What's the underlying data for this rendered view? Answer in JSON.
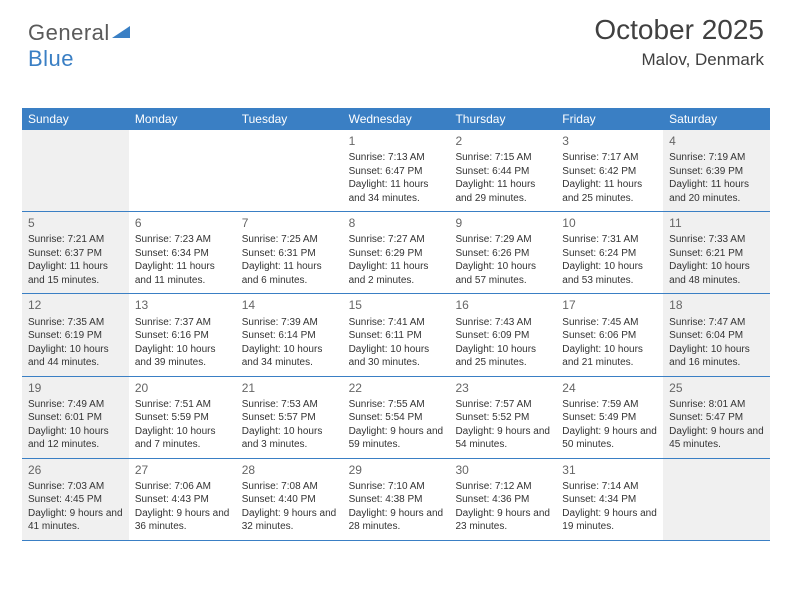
{
  "logo": {
    "part1": "General",
    "part2": "Blue"
  },
  "title": "October 2025",
  "location": "Malov, Denmark",
  "day_headers": [
    "Sunday",
    "Monday",
    "Tuesday",
    "Wednesday",
    "Thursday",
    "Friday",
    "Saturday"
  ],
  "header_bg": "#3a7fc4",
  "header_fg": "#ffffff",
  "weekend_bg": "#f0f0f0",
  "rule_color": "#3a7fc4",
  "weeks": [
    [
      {
        "num": "",
        "lines": []
      },
      {
        "num": "",
        "lines": []
      },
      {
        "num": "",
        "lines": []
      },
      {
        "num": "1",
        "lines": [
          "Sunrise: 7:13 AM",
          "Sunset: 6:47 PM",
          "Daylight: 11 hours and 34 minutes."
        ]
      },
      {
        "num": "2",
        "lines": [
          "Sunrise: 7:15 AM",
          "Sunset: 6:44 PM",
          "Daylight: 11 hours and 29 minutes."
        ]
      },
      {
        "num": "3",
        "lines": [
          "Sunrise: 7:17 AM",
          "Sunset: 6:42 PM",
          "Daylight: 11 hours and 25 minutes."
        ]
      },
      {
        "num": "4",
        "lines": [
          "Sunrise: 7:19 AM",
          "Sunset: 6:39 PM",
          "Daylight: 11 hours and 20 minutes."
        ]
      }
    ],
    [
      {
        "num": "5",
        "lines": [
          "Sunrise: 7:21 AM",
          "Sunset: 6:37 PM",
          "Daylight: 11 hours and 15 minutes."
        ]
      },
      {
        "num": "6",
        "lines": [
          "Sunrise: 7:23 AM",
          "Sunset: 6:34 PM",
          "Daylight: 11 hours and 11 minutes."
        ]
      },
      {
        "num": "7",
        "lines": [
          "Sunrise: 7:25 AM",
          "Sunset: 6:31 PM",
          "Daylight: 11 hours and 6 minutes."
        ]
      },
      {
        "num": "8",
        "lines": [
          "Sunrise: 7:27 AM",
          "Sunset: 6:29 PM",
          "Daylight: 11 hours and 2 minutes."
        ]
      },
      {
        "num": "9",
        "lines": [
          "Sunrise: 7:29 AM",
          "Sunset: 6:26 PM",
          "Daylight: 10 hours and 57 minutes."
        ]
      },
      {
        "num": "10",
        "lines": [
          "Sunrise: 7:31 AM",
          "Sunset: 6:24 PM",
          "Daylight: 10 hours and 53 minutes."
        ]
      },
      {
        "num": "11",
        "lines": [
          "Sunrise: 7:33 AM",
          "Sunset: 6:21 PM",
          "Daylight: 10 hours and 48 minutes."
        ]
      }
    ],
    [
      {
        "num": "12",
        "lines": [
          "Sunrise: 7:35 AM",
          "Sunset: 6:19 PM",
          "Daylight: 10 hours and 44 minutes."
        ]
      },
      {
        "num": "13",
        "lines": [
          "Sunrise: 7:37 AM",
          "Sunset: 6:16 PM",
          "Daylight: 10 hours and 39 minutes."
        ]
      },
      {
        "num": "14",
        "lines": [
          "Sunrise: 7:39 AM",
          "Sunset: 6:14 PM",
          "Daylight: 10 hours and 34 minutes."
        ]
      },
      {
        "num": "15",
        "lines": [
          "Sunrise: 7:41 AM",
          "Sunset: 6:11 PM",
          "Daylight: 10 hours and 30 minutes."
        ]
      },
      {
        "num": "16",
        "lines": [
          "Sunrise: 7:43 AM",
          "Sunset: 6:09 PM",
          "Daylight: 10 hours and 25 minutes."
        ]
      },
      {
        "num": "17",
        "lines": [
          "Sunrise: 7:45 AM",
          "Sunset: 6:06 PM",
          "Daylight: 10 hours and 21 minutes."
        ]
      },
      {
        "num": "18",
        "lines": [
          "Sunrise: 7:47 AM",
          "Sunset: 6:04 PM",
          "Daylight: 10 hours and 16 minutes."
        ]
      }
    ],
    [
      {
        "num": "19",
        "lines": [
          "Sunrise: 7:49 AM",
          "Sunset: 6:01 PM",
          "Daylight: 10 hours and 12 minutes."
        ]
      },
      {
        "num": "20",
        "lines": [
          "Sunrise: 7:51 AM",
          "Sunset: 5:59 PM",
          "Daylight: 10 hours and 7 minutes."
        ]
      },
      {
        "num": "21",
        "lines": [
          "Sunrise: 7:53 AM",
          "Sunset: 5:57 PM",
          "Daylight: 10 hours and 3 minutes."
        ]
      },
      {
        "num": "22",
        "lines": [
          "Sunrise: 7:55 AM",
          "Sunset: 5:54 PM",
          "Daylight: 9 hours and 59 minutes."
        ]
      },
      {
        "num": "23",
        "lines": [
          "Sunrise: 7:57 AM",
          "Sunset: 5:52 PM",
          "Daylight: 9 hours and 54 minutes."
        ]
      },
      {
        "num": "24",
        "lines": [
          "Sunrise: 7:59 AM",
          "Sunset: 5:49 PM",
          "Daylight: 9 hours and 50 minutes."
        ]
      },
      {
        "num": "25",
        "lines": [
          "Sunrise: 8:01 AM",
          "Sunset: 5:47 PM",
          "Daylight: 9 hours and 45 minutes."
        ]
      }
    ],
    [
      {
        "num": "26",
        "lines": [
          "Sunrise: 7:03 AM",
          "Sunset: 4:45 PM",
          "Daylight: 9 hours and 41 minutes."
        ]
      },
      {
        "num": "27",
        "lines": [
          "Sunrise: 7:06 AM",
          "Sunset: 4:43 PM",
          "Daylight: 9 hours and 36 minutes."
        ]
      },
      {
        "num": "28",
        "lines": [
          "Sunrise: 7:08 AM",
          "Sunset: 4:40 PM",
          "Daylight: 9 hours and 32 minutes."
        ]
      },
      {
        "num": "29",
        "lines": [
          "Sunrise: 7:10 AM",
          "Sunset: 4:38 PM",
          "Daylight: 9 hours and 28 minutes."
        ]
      },
      {
        "num": "30",
        "lines": [
          "Sunrise: 7:12 AM",
          "Sunset: 4:36 PM",
          "Daylight: 9 hours and 23 minutes."
        ]
      },
      {
        "num": "31",
        "lines": [
          "Sunrise: 7:14 AM",
          "Sunset: 4:34 PM",
          "Daylight: 9 hours and 19 minutes."
        ]
      },
      {
        "num": "",
        "lines": []
      }
    ]
  ]
}
